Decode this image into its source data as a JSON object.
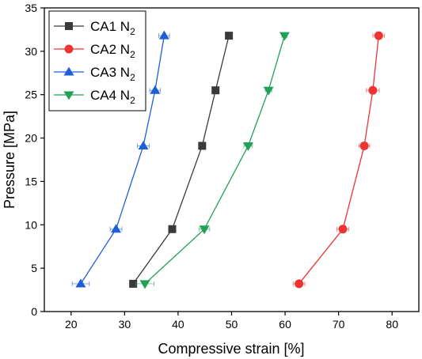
{
  "chart_data": {
    "type": "line",
    "xlabel": "Compressive strain [%]",
    "ylabel": "Pressure [MPa]",
    "xlim": [
      15,
      85
    ],
    "ylim": [
      0,
      35
    ],
    "xticks": [
      20,
      30,
      40,
      50,
      60,
      70,
      80
    ],
    "yticks": [
      0,
      5,
      10,
      15,
      20,
      25,
      30,
      35
    ],
    "xtick_labels": [
      "20",
      "30",
      "40",
      "50",
      "60",
      "70",
      "80"
    ],
    "ytick_labels": [
      "0",
      "5",
      "10",
      "15",
      "20",
      "25",
      "30",
      "35"
    ],
    "grid": false,
    "legend_position": "top-left",
    "series": [
      {
        "name": "CA1 N2",
        "label_main": "CA1 N",
        "label_sub": "2",
        "color": "#3a3a3a",
        "marker": "square",
        "points": [
          {
            "x": 31.6,
            "y": 3.2,
            "xerr": 0.5
          },
          {
            "x": 38.9,
            "y": 9.5,
            "xerr": 0.5
          },
          {
            "x": 44.5,
            "y": 19.1,
            "xerr": 0.5
          },
          {
            "x": 47.0,
            "y": 25.5,
            "xerr": 0.5
          },
          {
            "x": 49.5,
            "y": 31.8,
            "xerr": 0.5
          }
        ]
      },
      {
        "name": "CA2 N2",
        "label_main": "CA2 N",
        "label_sub": "2",
        "color": "#ee3333",
        "marker": "circle",
        "points": [
          {
            "x": 62.6,
            "y": 3.2,
            "xerr": 1.1
          },
          {
            "x": 70.8,
            "y": 9.5,
            "xerr": 1.1
          },
          {
            "x": 74.8,
            "y": 19.1,
            "xerr": 1.0
          },
          {
            "x": 76.4,
            "y": 25.5,
            "xerr": 1.2
          },
          {
            "x": 77.5,
            "y": 31.8,
            "xerr": 1.1
          }
        ]
      },
      {
        "name": "CA3 N2",
        "label_main": "CA3 N",
        "label_sub": "2",
        "color": "#1f5fd6",
        "marker": "triangle-up",
        "points": [
          {
            "x": 21.8,
            "y": 3.2,
            "xerr": 1.6
          },
          {
            "x": 28.4,
            "y": 9.5,
            "xerr": 1.1
          },
          {
            "x": 33.5,
            "y": 19.1,
            "xerr": 1.1
          },
          {
            "x": 35.7,
            "y": 25.5,
            "xerr": 1.0
          },
          {
            "x": 37.4,
            "y": 31.8,
            "xerr": 1.0
          }
        ]
      },
      {
        "name": "CA4 N2",
        "label_main": "CA4 N",
        "label_sub": "2",
        "color": "#22a05a",
        "marker": "triangle-down",
        "points": [
          {
            "x": 33.8,
            "y": 3.2,
            "xerr": 1.7
          },
          {
            "x": 44.9,
            "y": 9.5,
            "xerr": 1.0
          },
          {
            "x": 53.1,
            "y": 19.1,
            "xerr": 0.8
          },
          {
            "x": 56.9,
            "y": 25.5,
            "xerr": 0.6
          },
          {
            "x": 59.9,
            "y": 31.8,
            "xerr": 0.5
          }
        ]
      }
    ]
  }
}
